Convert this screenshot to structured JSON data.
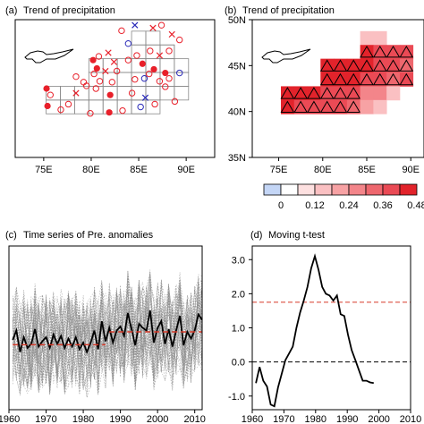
{
  "panels": {
    "a": {
      "label": "(a)",
      "title": "Trend of precipitation"
    },
    "b": {
      "label": "(b)",
      "title": "Trend of precipitation"
    },
    "c": {
      "label": "(c)",
      "title": "Time series of Pre. anomalies"
    },
    "d": {
      "label": "(d)",
      "title": "Moving t-test"
    }
  },
  "colors": {
    "red": "#e8202a",
    "blue": "#2a2ab8",
    "grid": "#888888",
    "dash_red": "#d63a2a"
  },
  "chart_data": [
    {
      "id": "a",
      "type": "scatter",
      "xticks": [
        "75E",
        "80E",
        "85E",
        "90E"
      ],
      "xlim": [
        72,
        93
      ],
      "ylim": [
        35,
        50
      ],
      "cells": [
        [
          85,
          48,
          1
        ],
        [
          86.5,
          48,
          1
        ],
        [
          85,
          46.5,
          3
        ],
        [
          88,
          46.5,
          1
        ],
        [
          80.5,
          45,
          6
        ],
        [
          89.5,
          45,
          1
        ],
        [
          80.5,
          43.5,
          6
        ],
        [
          89.5,
          43.5,
          1
        ],
        [
          76,
          42,
          7
        ],
        [
          86.5,
          42,
          3
        ],
        [
          76,
          40.5,
          7
        ],
        [
          85,
          40.5,
          2
        ]
      ],
      "stations": [
        {
          "x": 83.2,
          "y": 48.8,
          "m": "or"
        },
        {
          "x": 84.6,
          "y": 49.4,
          "m": "xb"
        },
        {
          "x": 86.5,
          "y": 49.1,
          "m": "xr"
        },
        {
          "x": 87.4,
          "y": 49.4,
          "m": "or"
        },
        {
          "x": 83.9,
          "y": 47.4,
          "m": "ob"
        },
        {
          "x": 86.2,
          "y": 46.6,
          "m": "or"
        },
        {
          "x": 88.2,
          "y": 46.6,
          "m": "or"
        },
        {
          "x": 89.3,
          "y": 47.8,
          "m": "or"
        },
        {
          "x": 88.5,
          "y": 48.4,
          "m": "xr"
        },
        {
          "x": 80.8,
          "y": 46.0,
          "m": "or"
        },
        {
          "x": 81.8,
          "y": 46.4,
          "m": "xr"
        },
        {
          "x": 84.8,
          "y": 46.1,
          "m": "or"
        },
        {
          "x": 87.2,
          "y": 46.1,
          "m": "xr"
        },
        {
          "x": 82.4,
          "y": 45.4,
          "m": "xr"
        },
        {
          "x": 80.2,
          "y": 45.6,
          "m": "fr"
        },
        {
          "x": 80.6,
          "y": 44.7,
          "m": "fr"
        },
        {
          "x": 83.9,
          "y": 45.6,
          "m": "or"
        },
        {
          "x": 85.4,
          "y": 45.2,
          "m": "fr"
        },
        {
          "x": 86.6,
          "y": 44.6,
          "m": "fr"
        },
        {
          "x": 87.8,
          "y": 44.2,
          "m": "fr"
        },
        {
          "x": 89.3,
          "y": 44.2,
          "m": "ob"
        },
        {
          "x": 80.3,
          "y": 44.1,
          "m": "or"
        },
        {
          "x": 81.5,
          "y": 44.4,
          "m": "xr"
        },
        {
          "x": 82.7,
          "y": 44.4,
          "m": "or"
        },
        {
          "x": 78.4,
          "y": 43.8,
          "m": "or"
        },
        {
          "x": 79.2,
          "y": 43.2,
          "m": "or"
        },
        {
          "x": 80.9,
          "y": 43.3,
          "m": "or"
        },
        {
          "x": 82.2,
          "y": 43.2,
          "m": "or"
        },
        {
          "x": 84.6,
          "y": 43.5,
          "m": "or"
        },
        {
          "x": 85.6,
          "y": 43.6,
          "m": "ob"
        },
        {
          "x": 86.1,
          "y": 44.1,
          "m": "or"
        },
        {
          "x": 87.2,
          "y": 43.3,
          "m": "or"
        },
        {
          "x": 88.2,
          "y": 43.6,
          "m": "or"
        },
        {
          "x": 75.3,
          "y": 42.5,
          "m": "fr"
        },
        {
          "x": 75.7,
          "y": 41.8,
          "m": "or"
        },
        {
          "x": 78.4,
          "y": 42.0,
          "m": "xr"
        },
        {
          "x": 79.5,
          "y": 42.8,
          "m": "or"
        },
        {
          "x": 80.5,
          "y": 42.5,
          "m": "or"
        },
        {
          "x": 82.0,
          "y": 41.8,
          "m": "fr"
        },
        {
          "x": 84.3,
          "y": 42.0,
          "m": "or"
        },
        {
          "x": 85.7,
          "y": 41.5,
          "m": "xb"
        },
        {
          "x": 87.8,
          "y": 42.7,
          "m": "or"
        },
        {
          "x": 75.4,
          "y": 40.6,
          "m": "fr"
        },
        {
          "x": 76.8,
          "y": 40.2,
          "m": "or"
        },
        {
          "x": 77.6,
          "y": 40.8,
          "m": "or"
        },
        {
          "x": 79.9,
          "y": 39.8,
          "m": "or"
        },
        {
          "x": 81.9,
          "y": 39.9,
          "m": "fr"
        },
        {
          "x": 83.3,
          "y": 40.1,
          "m": "or"
        },
        {
          "x": 85.2,
          "y": 40.5,
          "m": "ob"
        },
        {
          "x": 86.7,
          "y": 40.8,
          "m": "or"
        },
        {
          "x": 88.8,
          "y": 41.1,
          "m": "or"
        }
      ]
    },
    {
      "id": "b",
      "type": "heatmap",
      "xticks": [
        "75E",
        "80E",
        "85E",
        "90E"
      ],
      "yticks": [
        "35N",
        "40N",
        "45N",
        "50N"
      ],
      "xlim": [
        72,
        93
      ],
      "ylim": [
        35,
        50
      ],
      "colorbar_ticks": [
        "0",
        "0.12",
        "0.24",
        "0.36",
        "0.48"
      ],
      "colorbar_colors": [
        "#c4d6f6",
        "#ffffff",
        "#fde0e0",
        "#fac0c2",
        "#f7a2a4",
        "#f3858a",
        "#ee676e",
        "#ea4a55",
        "#e2232b"
      ],
      "cells": [
        {
          "x": 85,
          "y": 48,
          "v": 0.12
        },
        {
          "x": 86.5,
          "y": 48,
          "v": 0.12
        },
        {
          "x": 85,
          "y": 46.5,
          "v": 0.42,
          "tri": true
        },
        {
          "x": 86.5,
          "y": 46.5,
          "v": 0.4,
          "tri": true
        },
        {
          "x": 88,
          "y": 46.5,
          "v": 0.38,
          "tri": true
        },
        {
          "x": 89.5,
          "y": 46.5,
          "v": 0.36,
          "tri": true
        },
        {
          "x": 80.5,
          "y": 45,
          "v": 0.48,
          "tri": true
        },
        {
          "x": 82,
          "y": 45,
          "v": 0.44,
          "tri": true
        },
        {
          "x": 83.5,
          "y": 45,
          "v": 0.42,
          "tri": true
        },
        {
          "x": 85,
          "y": 45,
          "v": 0.42,
          "tri": true
        },
        {
          "x": 86.5,
          "y": 45,
          "v": 0.38,
          "tri": true
        },
        {
          "x": 88,
          "y": 45,
          "v": 0.38,
          "tri": true
        },
        {
          "x": 89.5,
          "y": 45,
          "v": 0.34,
          "tri": true
        },
        {
          "x": 80.5,
          "y": 43.5,
          "v": 0.48,
          "tri": true
        },
        {
          "x": 82,
          "y": 43.5,
          "v": 0.44,
          "tri": true
        },
        {
          "x": 83.5,
          "y": 43.5,
          "v": 0.42,
          "tri": true
        },
        {
          "x": 85,
          "y": 43.5,
          "v": 0.36,
          "tri": true
        },
        {
          "x": 86.5,
          "y": 43.5,
          "v": 0.38,
          "tri": true
        },
        {
          "x": 88,
          "y": 43.5,
          "v": 0.32,
          "tri": true
        },
        {
          "x": 89.5,
          "y": 43.5,
          "v": 0.36,
          "tri": true
        },
        {
          "x": 76,
          "y": 42,
          "v": 0.46,
          "tri": true
        },
        {
          "x": 77.5,
          "y": 42,
          "v": 0.44,
          "tri": true
        },
        {
          "x": 79,
          "y": 42,
          "v": 0.44,
          "tri": true
        },
        {
          "x": 80.5,
          "y": 42,
          "v": 0.38,
          "tri": true
        },
        {
          "x": 82,
          "y": 42,
          "v": 0.36,
          "tri": true
        },
        {
          "x": 83.5,
          "y": 42,
          "v": 0.38,
          "tri": true
        },
        {
          "x": 85,
          "y": 42,
          "v": 0.28
        },
        {
          "x": 86.5,
          "y": 42,
          "v": 0.26
        },
        {
          "x": 88,
          "y": 42,
          "v": 0.16
        },
        {
          "x": 76,
          "y": 40.5,
          "v": 0.42,
          "tri": true
        },
        {
          "x": 77.5,
          "y": 40.5,
          "v": 0.4,
          "tri": true
        },
        {
          "x": 79,
          "y": 40.5,
          "v": 0.38,
          "tri": true
        },
        {
          "x": 80.5,
          "y": 40.5,
          "v": 0.38,
          "tri": true
        },
        {
          "x": 82,
          "y": 40.5,
          "v": 0.36,
          "tri": true
        },
        {
          "x": 83.5,
          "y": 40.5,
          "v": 0.32,
          "tri": true
        },
        {
          "x": 85,
          "y": 40.5,
          "v": 0.2
        },
        {
          "x": 86.5,
          "y": 40.5,
          "v": 0.14
        }
      ]
    },
    {
      "id": "c",
      "type": "line",
      "xticks": [
        "1960",
        "1970",
        "1980",
        "1990",
        "2000",
        "2010"
      ],
      "xlim": [
        1960,
        2012
      ],
      "ylim": [
        -3,
        3
      ],
      "series": [
        {
          "kind": "mean",
          "x": [
            1961,
            1962,
            1963,
            1964,
            1965,
            1966,
            1967,
            1968,
            1969,
            1970,
            1971,
            1972,
            1973,
            1974,
            1975,
            1976,
            1977,
            1978,
            1979,
            1980,
            1981,
            1982,
            1983,
            1984,
            1985,
            1986,
            1987,
            1988,
            1989,
            1990,
            1991,
            1992,
            1993,
            1994,
            1995,
            1996,
            1997,
            1998,
            1999,
            2000,
            2001,
            2002,
            2003,
            2004,
            2005,
            2006,
            2007,
            2008,
            2009,
            2010,
            2011,
            2012
          ],
          "y": [
            0.0,
            0.35,
            -0.45,
            0.1,
            -0.3,
            -0.15,
            0.4,
            -0.25,
            -0.05,
            0.1,
            -0.3,
            0.2,
            -0.15,
            0.15,
            -0.3,
            0.05,
            -0.25,
            0.1,
            -0.35,
            -0.1,
            -0.45,
            -0.1,
            0.35,
            -0.35,
            0.7,
            -0.05,
            0.45,
            -0.1,
            0.35,
            0.5,
            0.15,
            1.0,
            0.4,
            -0.2,
            0.6,
            0.45,
            0.35,
            1.1,
            -0.1,
            0.45,
            0.7,
            -0.15,
            0.4,
            -0.25,
            0.35,
            0.9,
            -0.2,
            0.3,
            0.05,
            0.35,
            0.95,
            0.75
          ]
        },
        {
          "kind": "mean-before",
          "x": [
            1961,
            1986
          ],
          "y": [
            -0.18,
            -0.18
          ]
        },
        {
          "kind": "mean-after",
          "x": [
            1987,
            2012
          ],
          "y": [
            0.3,
            0.3
          ]
        }
      ]
    },
    {
      "id": "d",
      "type": "line",
      "xticks": [
        "1960",
        "1970",
        "1980",
        "1990",
        "2000",
        "2010"
      ],
      "yticks": [
        "3.0",
        "2.0",
        "1.0",
        "0.0",
        "-1.0"
      ],
      "xlim": [
        1960,
        2012
      ],
      "ylim": [
        -1.4,
        3.4
      ],
      "critical_value": 1.75,
      "series": [
        {
          "kind": "t-statistic",
          "x": [
            1970,
            1971,
            1972,
            1973,
            1974,
            1975,
            1976,
            1977,
            1978,
            1979,
            1980,
            1981,
            1982,
            1983,
            1984,
            1985,
            1986,
            1987,
            1988,
            1989,
            1990,
            1991,
            1992,
            1993,
            1994,
            1995,
            1996,
            1997,
            1998,
            1999,
            2000,
            2001,
            2002
          ],
          "y": [
            -0.62,
            -0.15,
            -0.55,
            -0.72,
            -1.25,
            -1.3,
            -0.75,
            -0.35,
            0.05,
            0.25,
            0.45,
            1.0,
            1.45,
            1.8,
            2.2,
            2.75,
            3.1,
            2.7,
            2.2,
            2.0,
            1.95,
            1.8,
            1.95,
            1.4,
            1.35,
            0.8,
            0.35,
            0.05,
            -0.25,
            -0.55,
            -0.55,
            -0.6,
            -0.62
          ]
        }
      ]
    }
  ]
}
